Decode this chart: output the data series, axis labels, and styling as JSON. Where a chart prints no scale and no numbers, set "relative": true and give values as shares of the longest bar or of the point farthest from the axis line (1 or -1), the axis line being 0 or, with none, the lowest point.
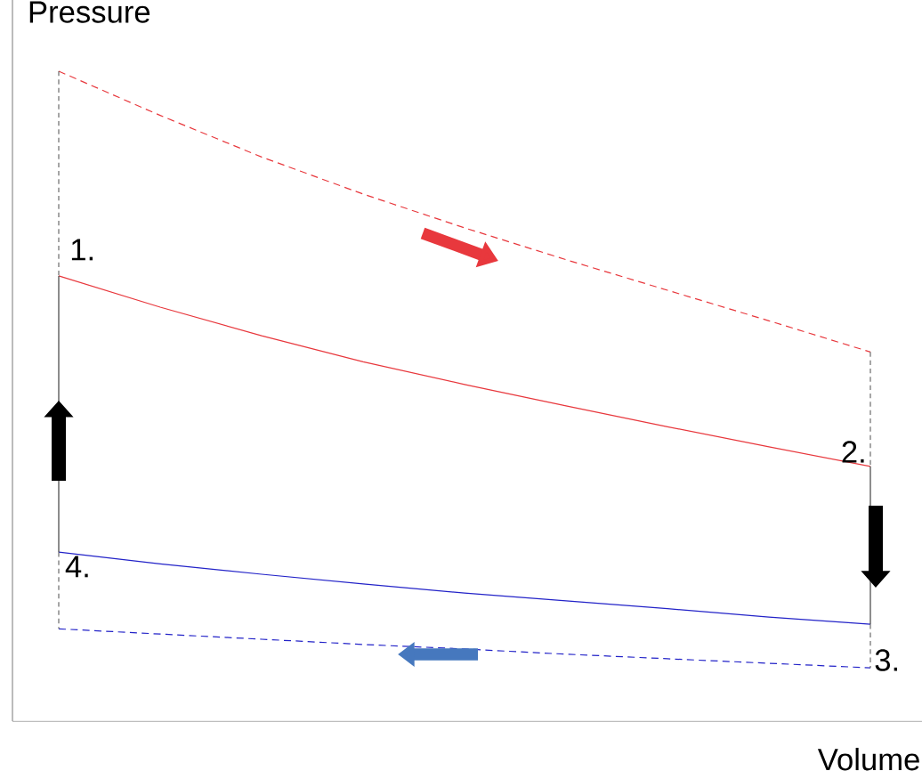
{
  "chart_data": {
    "type": "line",
    "relative": true,
    "xlabel": "Volume",
    "ylabel": "Pressure",
    "categories": [
      null,
      null,
      null,
      null,
      null,
      null,
      null,
      null,
      null
    ],
    "series": [
      {
        "color": "#e8383d",
        "line_style": "solid",
        "values": [
          0.685,
          0.637,
          0.593,
          0.553,
          0.518,
          0.485,
          0.453,
          0.422,
          0.392
        ]
      },
      {
        "color": "#2323c8",
        "line_style": "solid",
        "values": [
          0.26,
          0.242,
          0.226,
          0.211,
          0.197,
          0.185,
          0.173,
          0.16,
          0.149
        ]
      },
      {
        "color": "#e8383d",
        "line_style": "dashed",
        "values": [
          1,
          0.932,
          0.868,
          0.811,
          0.759,
          0.71,
          0.663,
          0.616,
          0.568
        ]
      },
      {
        "color": "#2323c8",
        "line_style": "dashed",
        "values": [
          0.142,
          0.134,
          0.126,
          0.118,
          0.111,
          0.103,
          0.096,
          0.089,
          0.082
        ]
      }
    ],
    "annotations": [
      "1.",
      "2.",
      "3.",
      "4."
    ],
    "marker": "none"
  }
}
